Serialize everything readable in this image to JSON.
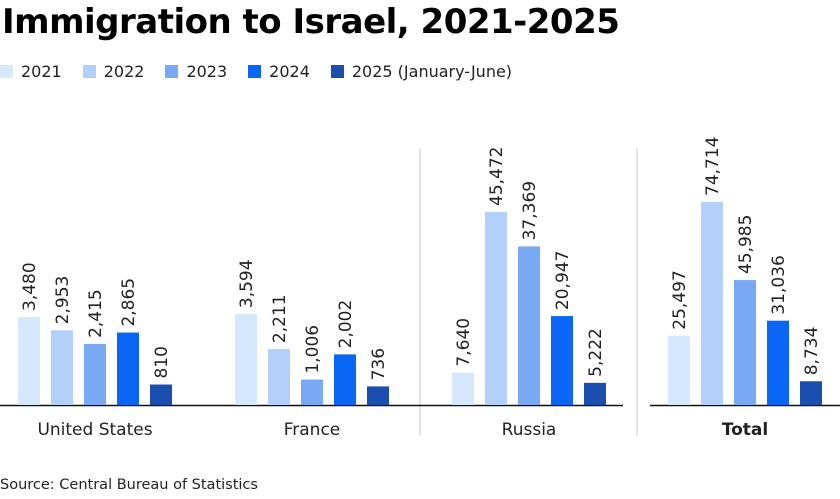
{
  "title": "Immigration to Israel, 2021-2025",
  "source": "Source: Central Bureau of Statistics",
  "chart_data": {
    "type": "bar",
    "title": "Immigration to Israel, 2021-2025",
    "xlabel": "",
    "ylabel": "",
    "grid": false,
    "legend_position": "top-left",
    "categories": [
      "United States",
      "France",
      "Russia",
      "Total"
    ],
    "category_bold": [
      false,
      false,
      false,
      true
    ],
    "scale_groups": [
      [
        "United States",
        "France"
      ],
      [
        "Russia"
      ],
      [
        "Total"
      ]
    ],
    "series": [
      {
        "name": "2021",
        "color": "#d6e8fc",
        "values": [
          3480,
          3594,
          7640,
          25497
        ]
      },
      {
        "name": "2022",
        "color": "#b2d0fa",
        "values": [
          2953,
          2211,
          45472,
          74714
        ]
      },
      {
        "name": "2023",
        "color": "#78a9f2",
        "values": [
          2415,
          1006,
          37369,
          45985
        ]
      },
      {
        "name": "2024",
        "color": "#0a66f5",
        "values": [
          2865,
          2002,
          20947,
          31036
        ]
      },
      {
        "name": "2025 (January-June)",
        "color": "#1a4fb0",
        "values": [
          810,
          736,
          5222,
          8734
        ]
      }
    ],
    "data_labels": [
      [
        "3,480",
        "2,953",
        "2,415",
        "2,865",
        "810"
      ],
      [
        "3,594",
        "2,211",
        "1,006",
        "2,002",
        "736"
      ],
      [
        "7,640",
        "45,472",
        "37,369",
        "20,947",
        "5,222"
      ],
      [
        "25,497",
        "74,714",
        "45,985",
        "31,036",
        "8,734"
      ]
    ]
  }
}
